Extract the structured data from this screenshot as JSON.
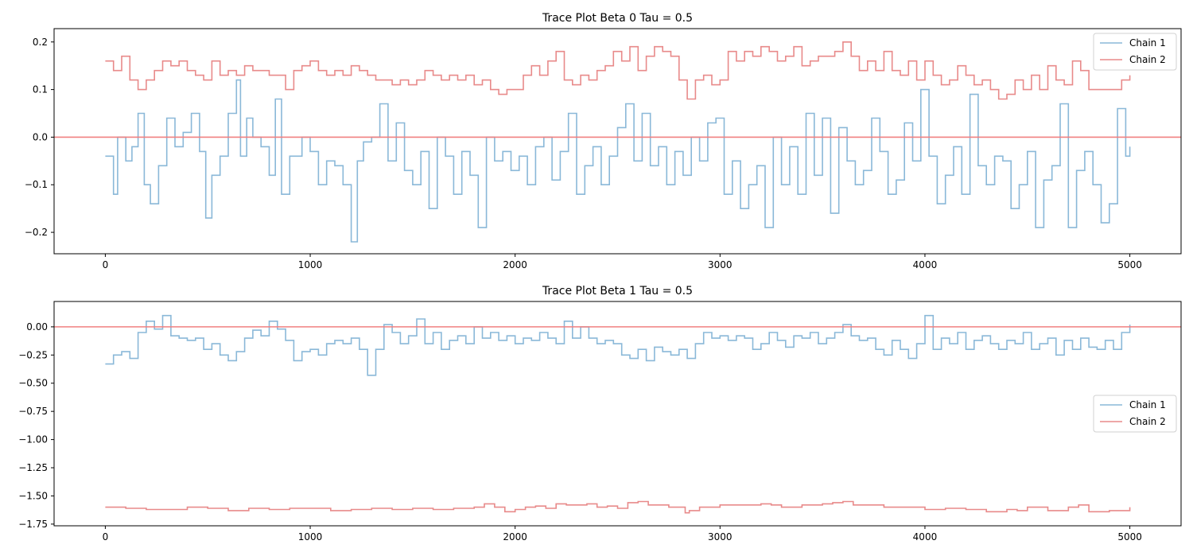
{
  "chart_data": [
    {
      "type": "line",
      "title": "Trace Plot Beta 0 Tau = 0.5",
      "xlabel": "",
      "ylabel": "",
      "xlim": [
        -250,
        5250
      ],
      "ylim": [
        -0.245,
        0.228
      ],
      "xticks": [
        0,
        1000,
        2000,
        3000,
        4000,
        5000
      ],
      "xtick_labels": [
        "0",
        "1000",
        "2000",
        "3000",
        "4000",
        "5000"
      ],
      "yticks": [
        -0.2,
        -0.1,
        0.0,
        0.1,
        0.2
      ],
      "ytick_labels": [
        "−0.2",
        "−0.1",
        "0.0",
        "0.1",
        "0.2"
      ],
      "grid": false,
      "legend_position": "upper right",
      "reference_line": {
        "y": 0.0,
        "color": "#f08080"
      },
      "series": [
        {
          "name": "Chain 1",
          "color": "#8ab8d8",
          "x": [
            0,
            40,
            60,
            100,
            130,
            160,
            190,
            220,
            260,
            300,
            340,
            380,
            420,
            460,
            490,
            520,
            560,
            600,
            640,
            660,
            690,
            720,
            760,
            800,
            830,
            860,
            900,
            960,
            1000,
            1040,
            1080,
            1120,
            1160,
            1200,
            1230,
            1260,
            1300,
            1340,
            1380,
            1420,
            1460,
            1500,
            1540,
            1580,
            1620,
            1660,
            1700,
            1740,
            1780,
            1820,
            1860,
            1900,
            1940,
            1980,
            2020,
            2060,
            2100,
            2140,
            2180,
            2220,
            2260,
            2300,
            2340,
            2380,
            2420,
            2460,
            2500,
            2540,
            2580,
            2620,
            2660,
            2700,
            2740,
            2780,
            2820,
            2860,
            2900,
            2940,
            2980,
            3020,
            3060,
            3100,
            3140,
            3180,
            3220,
            3260,
            3300,
            3340,
            3380,
            3420,
            3460,
            3500,
            3540,
            3580,
            3620,
            3660,
            3700,
            3740,
            3780,
            3820,
            3860,
            3900,
            3940,
            3980,
            4020,
            4060,
            4100,
            4140,
            4180,
            4220,
            4260,
            4300,
            4340,
            4380,
            4420,
            4460,
            4500,
            4540,
            4580,
            4620,
            4660,
            4700,
            4740,
            4780,
            4820,
            4860,
            4900,
            4940,
            4980,
            5000
          ],
          "values": [
            -0.04,
            -0.12,
            0.0,
            -0.05,
            -0.02,
            0.05,
            -0.1,
            -0.14,
            -0.06,
            0.04,
            -0.02,
            0.01,
            0.05,
            -0.03,
            -0.17,
            -0.08,
            -0.04,
            0.05,
            0.12,
            -0.04,
            0.04,
            0.0,
            -0.02,
            -0.08,
            0.08,
            -0.12,
            -0.04,
            0.0,
            -0.03,
            -0.1,
            -0.05,
            -0.06,
            -0.1,
            -0.22,
            -0.05,
            -0.01,
            0.0,
            0.07,
            -0.05,
            0.03,
            -0.07,
            -0.1,
            -0.03,
            -0.15,
            0.0,
            -0.04,
            -0.12,
            -0.03,
            -0.08,
            -0.19,
            0.0,
            -0.05,
            -0.03,
            -0.07,
            -0.04,
            -0.1,
            -0.02,
            0.0,
            -0.09,
            -0.03,
            0.05,
            -0.12,
            -0.06,
            -0.02,
            -0.1,
            -0.04,
            0.02,
            0.07,
            -0.05,
            0.05,
            -0.06,
            -0.02,
            -0.1,
            -0.03,
            -0.08,
            0.0,
            -0.05,
            0.03,
            0.04,
            -0.12,
            -0.05,
            -0.15,
            -0.1,
            -0.06,
            -0.19,
            0.0,
            -0.1,
            -0.02,
            -0.12,
            0.05,
            -0.08,
            0.04,
            -0.16,
            0.02,
            -0.05,
            -0.1,
            -0.07,
            0.04,
            -0.03,
            -0.12,
            -0.09,
            0.03,
            -0.05,
            0.1,
            -0.04,
            -0.14,
            -0.08,
            -0.02,
            -0.12,
            0.09,
            -0.06,
            -0.1,
            -0.04,
            -0.05,
            -0.15,
            -0.1,
            -0.03,
            -0.19,
            -0.09,
            -0.06,
            0.07,
            -0.19,
            -0.07,
            -0.03,
            -0.1,
            -0.18,
            -0.14,
            0.06,
            -0.04,
            -0.02
          ]
        },
        {
          "name": "Chain 2",
          "color": "#e88a8a",
          "x": [
            0,
            40,
            80,
            120,
            160,
            200,
            240,
            280,
            320,
            360,
            400,
            440,
            480,
            520,
            560,
            600,
            640,
            680,
            720,
            760,
            800,
            840,
            880,
            920,
            960,
            1000,
            1040,
            1080,
            1120,
            1160,
            1200,
            1240,
            1280,
            1320,
            1360,
            1400,
            1440,
            1480,
            1520,
            1560,
            1600,
            1640,
            1680,
            1720,
            1760,
            1800,
            1840,
            1880,
            1920,
            1960,
            2000,
            2040,
            2080,
            2120,
            2160,
            2200,
            2240,
            2280,
            2320,
            2360,
            2400,
            2440,
            2480,
            2520,
            2560,
            2600,
            2640,
            2680,
            2720,
            2760,
            2800,
            2840,
            2880,
            2920,
            2960,
            3000,
            3040,
            3080,
            3120,
            3160,
            3200,
            3240,
            3280,
            3320,
            3360,
            3400,
            3440,
            3480,
            3520,
            3560,
            3600,
            3640,
            3680,
            3720,
            3760,
            3800,
            3840,
            3880,
            3920,
            3960,
            4000,
            4040,
            4080,
            4120,
            4160,
            4200,
            4240,
            4280,
            4320,
            4360,
            4400,
            4440,
            4480,
            4520,
            4560,
            4600,
            4640,
            4680,
            4720,
            4760,
            4800,
            4840,
            4880,
            4920,
            4960,
            5000
          ],
          "values": [
            0.16,
            0.14,
            0.17,
            0.12,
            0.1,
            0.12,
            0.14,
            0.16,
            0.15,
            0.16,
            0.14,
            0.13,
            0.12,
            0.16,
            0.13,
            0.14,
            0.13,
            0.15,
            0.14,
            0.14,
            0.13,
            0.13,
            0.1,
            0.14,
            0.15,
            0.16,
            0.14,
            0.13,
            0.14,
            0.13,
            0.15,
            0.14,
            0.13,
            0.12,
            0.12,
            0.11,
            0.12,
            0.11,
            0.12,
            0.14,
            0.13,
            0.12,
            0.13,
            0.12,
            0.13,
            0.11,
            0.12,
            0.1,
            0.09,
            0.1,
            0.1,
            0.13,
            0.15,
            0.13,
            0.16,
            0.18,
            0.12,
            0.11,
            0.13,
            0.12,
            0.14,
            0.15,
            0.18,
            0.16,
            0.19,
            0.14,
            0.17,
            0.19,
            0.18,
            0.17,
            0.12,
            0.08,
            0.12,
            0.13,
            0.11,
            0.12,
            0.18,
            0.16,
            0.18,
            0.17,
            0.19,
            0.18,
            0.16,
            0.17,
            0.19,
            0.15,
            0.16,
            0.17,
            0.17,
            0.18,
            0.2,
            0.17,
            0.14,
            0.16,
            0.14,
            0.18,
            0.14,
            0.13,
            0.16,
            0.12,
            0.16,
            0.13,
            0.11,
            0.12,
            0.15,
            0.13,
            0.11,
            0.12,
            0.1,
            0.08,
            0.09,
            0.12,
            0.1,
            0.13,
            0.1,
            0.15,
            0.12,
            0.11,
            0.16,
            0.14,
            0.1,
            0.1,
            0.1,
            0.1,
            0.12,
            0.13
          ]
        }
      ]
    },
    {
      "type": "line",
      "title": "Trace Plot Beta 1 Tau = 0.5",
      "xlabel": "",
      "ylabel": "",
      "xlim": [
        -250,
        5250
      ],
      "ylim": [
        -1.765,
        0.225
      ],
      "xticks": [
        0,
        1000,
        2000,
        3000,
        4000,
        5000
      ],
      "xtick_labels": [
        "0",
        "1000",
        "2000",
        "3000",
        "4000",
        "5000"
      ],
      "yticks": [
        0.0,
        -0.25,
        -0.5,
        -0.75,
        -1.0,
        -1.25,
        -1.5,
        -1.75
      ],
      "ytick_labels": [
        "0.00",
        "−0.25",
        "−0.50",
        "−0.75",
        "−1.00",
        "−1.25",
        "−1.50",
        "−1.75"
      ],
      "grid": false,
      "legend_position": "center right",
      "reference_line": {
        "y": 0.0,
        "color": "#f08080"
      },
      "series": [
        {
          "name": "Chain 1",
          "color": "#8ab8d8",
          "x": [
            0,
            40,
            80,
            120,
            160,
            200,
            240,
            280,
            320,
            360,
            400,
            440,
            480,
            520,
            560,
            600,
            640,
            680,
            720,
            760,
            800,
            840,
            880,
            920,
            960,
            1000,
            1040,
            1080,
            1120,
            1160,
            1200,
            1240,
            1280,
            1320,
            1360,
            1400,
            1440,
            1480,
            1520,
            1560,
            1600,
            1640,
            1680,
            1720,
            1760,
            1800,
            1840,
            1880,
            1920,
            1960,
            2000,
            2040,
            2080,
            2120,
            2160,
            2200,
            2240,
            2280,
            2320,
            2360,
            2400,
            2440,
            2480,
            2520,
            2560,
            2600,
            2640,
            2680,
            2720,
            2760,
            2800,
            2840,
            2880,
            2920,
            2960,
            3000,
            3040,
            3080,
            3120,
            3160,
            3200,
            3240,
            3280,
            3320,
            3360,
            3400,
            3440,
            3480,
            3520,
            3560,
            3600,
            3640,
            3680,
            3720,
            3760,
            3800,
            3840,
            3880,
            3920,
            3960,
            4000,
            4040,
            4080,
            4120,
            4160,
            4200,
            4240,
            4280,
            4320,
            4360,
            4400,
            4440,
            4480,
            4520,
            4560,
            4600,
            4640,
            4680,
            4720,
            4760,
            4800,
            4840,
            4880,
            4920,
            4960,
            5000
          ],
          "values": [
            -0.33,
            -0.25,
            -0.22,
            -0.28,
            -0.05,
            0.05,
            -0.02,
            0.1,
            -0.08,
            -0.1,
            -0.12,
            -0.1,
            -0.2,
            -0.15,
            -0.25,
            -0.3,
            -0.22,
            -0.1,
            -0.03,
            -0.08,
            0.05,
            -0.02,
            -0.12,
            -0.3,
            -0.22,
            -0.2,
            -0.25,
            -0.15,
            -0.12,
            -0.15,
            -0.1,
            -0.2,
            -0.43,
            -0.2,
            0.02,
            -0.05,
            -0.15,
            -0.08,
            0.07,
            -0.15,
            -0.05,
            -0.2,
            -0.12,
            -0.08,
            -0.15,
            0.0,
            -0.1,
            -0.05,
            -0.12,
            -0.08,
            -0.15,
            -0.1,
            -0.12,
            -0.05,
            -0.1,
            -0.15,
            0.05,
            -0.1,
            0.0,
            -0.1,
            -0.15,
            -0.12,
            -0.15,
            -0.25,
            -0.28,
            -0.2,
            -0.3,
            -0.18,
            -0.22,
            -0.25,
            -0.2,
            -0.28,
            -0.15,
            -0.05,
            -0.1,
            -0.08,
            -0.12,
            -0.08,
            -0.1,
            -0.2,
            -0.15,
            -0.05,
            -0.12,
            -0.18,
            -0.08,
            -0.1,
            -0.05,
            -0.15,
            -0.1,
            -0.05,
            0.02,
            -0.08,
            -0.12,
            -0.1,
            -0.2,
            -0.25,
            -0.12,
            -0.2,
            -0.28,
            -0.15,
            0.1,
            -0.2,
            -0.1,
            -0.15,
            -0.05,
            -0.2,
            -0.12,
            -0.08,
            -0.15,
            -0.2,
            -0.12,
            -0.15,
            -0.05,
            -0.2,
            -0.15,
            -0.1,
            -0.25,
            -0.12,
            -0.2,
            -0.1,
            -0.18,
            -0.2,
            -0.12,
            -0.2,
            -0.05,
            0.02
          ]
        },
        {
          "name": "Chain 2",
          "color": "#e88a8a",
          "x": [
            0,
            100,
            200,
            300,
            400,
            500,
            600,
            700,
            800,
            900,
            1000,
            1100,
            1200,
            1300,
            1400,
            1500,
            1600,
            1700,
            1800,
            1850,
            1900,
            1950,
            2000,
            2050,
            2100,
            2150,
            2200,
            2250,
            2300,
            2350,
            2400,
            2450,
            2500,
            2550,
            2600,
            2650,
            2700,
            2750,
            2800,
            2830,
            2850,
            2900,
            2950,
            3000,
            3100,
            3200,
            3250,
            3300,
            3400,
            3500,
            3550,
            3600,
            3650,
            3700,
            3800,
            3900,
            4000,
            4100,
            4200,
            4300,
            4400,
            4450,
            4500,
            4600,
            4700,
            4750,
            4800,
            4900,
            5000
          ],
          "values": [
            -1.6,
            -1.61,
            -1.62,
            -1.62,
            -1.6,
            -1.61,
            -1.63,
            -1.61,
            -1.62,
            -1.61,
            -1.61,
            -1.63,
            -1.62,
            -1.61,
            -1.62,
            -1.61,
            -1.62,
            -1.61,
            -1.6,
            -1.57,
            -1.6,
            -1.64,
            -1.62,
            -1.6,
            -1.59,
            -1.61,
            -1.57,
            -1.58,
            -1.58,
            -1.57,
            -1.6,
            -1.59,
            -1.61,
            -1.56,
            -1.55,
            -1.58,
            -1.58,
            -1.6,
            -1.6,
            -1.65,
            -1.63,
            -1.6,
            -1.6,
            -1.58,
            -1.58,
            -1.57,
            -1.58,
            -1.6,
            -1.58,
            -1.57,
            -1.56,
            -1.55,
            -1.58,
            -1.58,
            -1.6,
            -1.6,
            -1.62,
            -1.61,
            -1.62,
            -1.64,
            -1.62,
            -1.63,
            -1.6,
            -1.63,
            -1.6,
            -1.58,
            -1.64,
            -1.63,
            -1.6
          ]
        }
      ]
    }
  ]
}
